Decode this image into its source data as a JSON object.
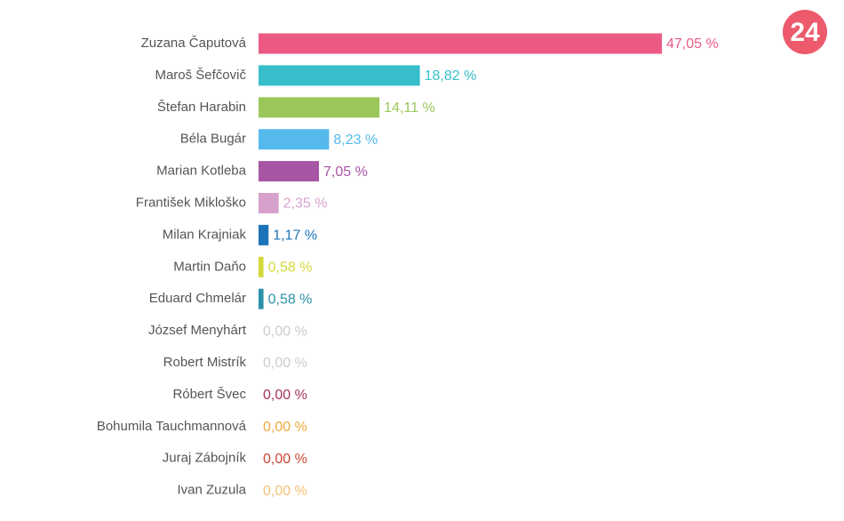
{
  "logo": "24",
  "chart_data": {
    "type": "bar",
    "orientation": "horizontal",
    "categories": [
      "Zuzana Čaputová",
      "Maroš Šefčovič",
      "Štefan Harabin",
      "Béla Bugár",
      "Marian Kotleba",
      "František Mikloško",
      "Milan Krajniak",
      "Martin Daňo",
      "Eduard Chmelár",
      "József Menyhárt",
      "Robert Mistrík",
      "Róbert Švec",
      "Bohumila Tauchmannová",
      "Juraj Zábojník",
      "Ivan Zuzula"
    ],
    "values": [
      47.05,
      18.82,
      14.11,
      8.23,
      7.05,
      2.35,
      1.17,
      0.58,
      0.58,
      0,
      0,
      0,
      0,
      0,
      0
    ],
    "value_labels": [
      "47,05 %",
      "18,82 %",
      "14,11 %",
      "8,23 %",
      "7,05 %",
      "2,35 %",
      "1,17 %",
      "0,58 %",
      "0,58 %",
      "0,00 %",
      "0,00 %",
      "0,00 %",
      "0,00 %",
      "0,00 %",
      "0,00 %"
    ],
    "colors": [
      "#ec5a84",
      "#36bfca",
      "#9bc75a",
      "#56b9ec",
      "#a855a6",
      "#d7a1cc",
      "#1c74b8",
      "#d3d93b",
      "#2b91a8",
      "#cccccc",
      "#cccccc",
      "#a8325f",
      "#f0a93c",
      "#cf4535",
      "#f5c078"
    ]
  }
}
